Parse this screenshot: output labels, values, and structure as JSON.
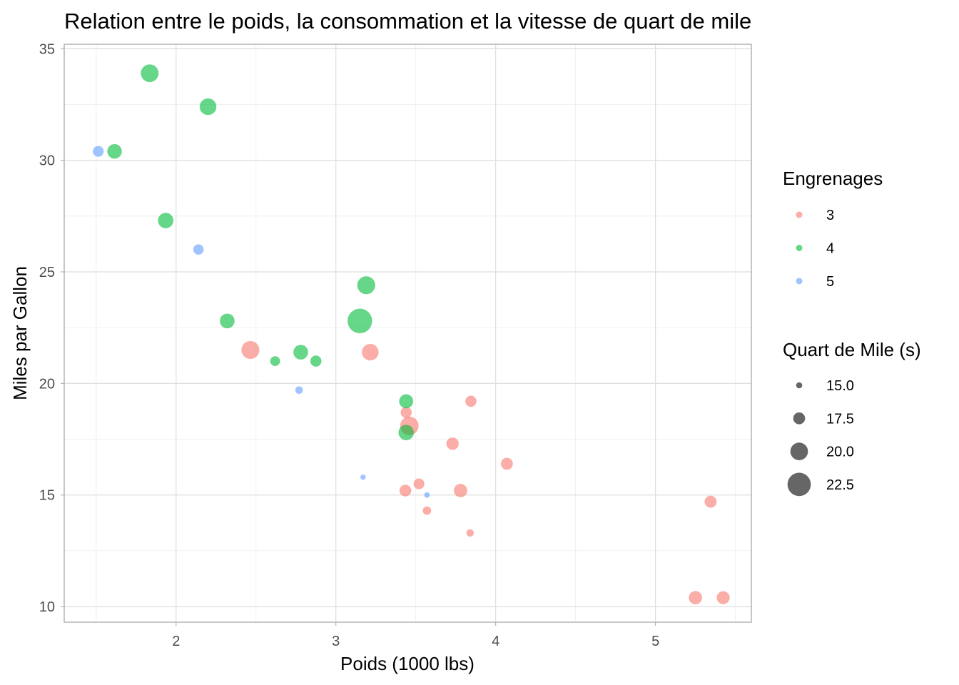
{
  "chart_data": {
    "type": "scatter",
    "title": "Relation entre le poids, la consommation et la vitesse de quart de mile",
    "xlabel": "Poids (1000 lbs)",
    "ylabel": "Miles par Gallon",
    "xlim": [
      1.3,
      5.6
    ],
    "ylim": [
      9.3,
      35.2
    ],
    "xticks": [
      2,
      3,
      4,
      5
    ],
    "yticks": [
      10,
      15,
      20,
      25,
      30,
      35
    ],
    "grid": true,
    "legend_position": "right",
    "color_legend": {
      "title": "Engrenages",
      "entries": [
        {
          "label": "3",
          "color": "#F8766D"
        },
        {
          "label": "4",
          "color": "#00BA38"
        },
        {
          "label": "5",
          "color": "#619CFF"
        }
      ]
    },
    "size_legend": {
      "title": "Quart de Mile (s)",
      "entries": [
        {
          "label": "15.0",
          "value": 15.0
        },
        {
          "label": "17.5",
          "value": 17.5
        },
        {
          "label": "20.0",
          "value": 20.0
        },
        {
          "label": "22.5",
          "value": 22.5
        }
      ]
    },
    "size_range": [
      14.5,
      22.9
    ],
    "marker_alpha": 0.6,
    "points": [
      {
        "x": 2.62,
        "y": 21.0,
        "gear": "4",
        "qsec": 16.46
      },
      {
        "x": 2.875,
        "y": 21.0,
        "gear": "4",
        "qsec": 17.02
      },
      {
        "x": 2.32,
        "y": 22.8,
        "gear": "4",
        "qsec": 18.61
      },
      {
        "x": 3.215,
        "y": 21.4,
        "gear": "3",
        "qsec": 19.44
      },
      {
        "x": 3.44,
        "y": 18.7,
        "gear": "3",
        "qsec": 17.02
      },
      {
        "x": 3.46,
        "y": 18.1,
        "gear": "3",
        "qsec": 20.22
      },
      {
        "x": 3.57,
        "y": 14.3,
        "gear": "3",
        "qsec": 15.84
      },
      {
        "x": 3.19,
        "y": 24.4,
        "gear": "4",
        "qsec": 20.0
      },
      {
        "x": 3.15,
        "y": 22.8,
        "gear": "4",
        "qsec": 22.9
      },
      {
        "x": 3.44,
        "y": 19.2,
        "gear": "4",
        "qsec": 18.3
      },
      {
        "x": 3.44,
        "y": 17.8,
        "gear": "4",
        "qsec": 18.9
      },
      {
        "x": 4.07,
        "y": 16.4,
        "gear": "3",
        "qsec": 17.4
      },
      {
        "x": 3.73,
        "y": 17.3,
        "gear": "3",
        "qsec": 17.6
      },
      {
        "x": 3.78,
        "y": 15.2,
        "gear": "3",
        "qsec": 18.0
      },
      {
        "x": 5.25,
        "y": 10.4,
        "gear": "3",
        "qsec": 17.98
      },
      {
        "x": 5.424,
        "y": 10.4,
        "gear": "3",
        "qsec": 17.82
      },
      {
        "x": 5.345,
        "y": 14.7,
        "gear": "3",
        "qsec": 17.42
      },
      {
        "x": 2.2,
        "y": 32.4,
        "gear": "4",
        "qsec": 19.47
      },
      {
        "x": 1.615,
        "y": 30.4,
        "gear": "4",
        "qsec": 18.52
      },
      {
        "x": 1.835,
        "y": 33.9,
        "gear": "4",
        "qsec": 19.9
      },
      {
        "x": 2.465,
        "y": 21.5,
        "gear": "3",
        "qsec": 20.01
      },
      {
        "x": 3.52,
        "y": 15.5,
        "gear": "3",
        "qsec": 16.87
      },
      {
        "x": 3.435,
        "y": 15.2,
        "gear": "3",
        "qsec": 17.3
      },
      {
        "x": 3.84,
        "y": 13.3,
        "gear": "3",
        "qsec": 15.41
      },
      {
        "x": 3.845,
        "y": 19.2,
        "gear": "3",
        "qsec": 17.05
      },
      {
        "x": 1.935,
        "y": 27.3,
        "gear": "4",
        "qsec": 18.9
      },
      {
        "x": 2.14,
        "y": 26.0,
        "gear": "5",
        "qsec": 16.7
      },
      {
        "x": 1.513,
        "y": 30.4,
        "gear": "5",
        "qsec": 16.9
      },
      {
        "x": 3.17,
        "y": 15.8,
        "gear": "5",
        "qsec": 14.5
      },
      {
        "x": 2.77,
        "y": 19.7,
        "gear": "5",
        "qsec": 15.5
      },
      {
        "x": 3.57,
        "y": 15.0,
        "gear": "5",
        "qsec": 14.6
      },
      {
        "x": 2.78,
        "y": 21.4,
        "gear": "4",
        "qsec": 18.6
      }
    ]
  }
}
